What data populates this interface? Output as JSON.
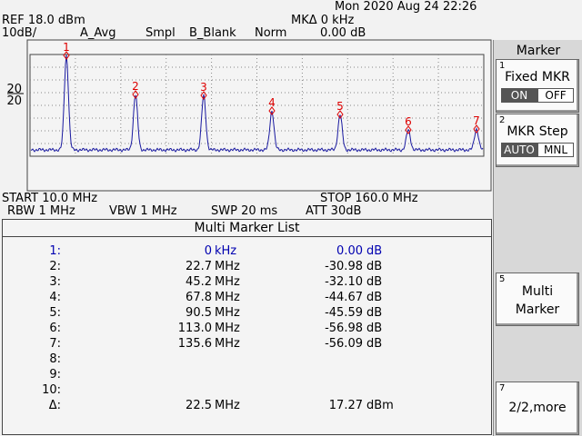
{
  "header": {
    "datetime": "Mon 2020 Aug 24 22:26",
    "ref": "REF 18.0 dBm",
    "mkr_delta": "MKΔ 0 kHz",
    "scale": "10dB/",
    "detector": "A_Avg",
    "sampling": "Smpl",
    "blank": "B_Blank",
    "norm": "Norm",
    "mkr_value": "0.00 dB"
  },
  "graticule": {
    "left_labels": [
      "20",
      "20"
    ],
    "marker_labels": [
      "1",
      "2",
      "3",
      "4",
      "5",
      "6",
      "7"
    ]
  },
  "footer": {
    "start": "START 10.0 MHz",
    "stop": "STOP 160.0 MHz",
    "rbw": "RBW 1 MHz",
    "vbw": "VBW 1 MHz",
    "sweep": "SWP 20 ms",
    "att": "ATT 30dB"
  },
  "marker_list": {
    "title": "Multi Marker List",
    "rows": [
      {
        "index": "1:",
        "value": "0",
        "unit": "kHz",
        "level": "0.00",
        "level_unit": "dB"
      },
      {
        "index": "2:",
        "value": "22.7",
        "unit": "MHz",
        "level": "-30.98",
        "level_unit": "dB"
      },
      {
        "index": "3:",
        "value": "45.2",
        "unit": "MHz",
        "level": "-32.10",
        "level_unit": "dB"
      },
      {
        "index": "4:",
        "value": "67.8",
        "unit": "MHz",
        "level": "-44.67",
        "level_unit": "dB"
      },
      {
        "index": "5:",
        "value": "90.5",
        "unit": "MHz",
        "level": "-45.59",
        "level_unit": "dB"
      },
      {
        "index": "6:",
        "value": "113.0",
        "unit": "MHz",
        "level": "-56.98",
        "level_unit": "dB"
      },
      {
        "index": "7:",
        "value": "135.6",
        "unit": "MHz",
        "level": "-56.09",
        "level_unit": "dB"
      },
      {
        "index": "8:"
      },
      {
        "index": "9:"
      },
      {
        "index": "10:"
      },
      {
        "index": "Δ:",
        "value": "22.5",
        "unit": "MHz",
        "level": "17.27",
        "level_unit": "dBm"
      }
    ]
  },
  "softkeys": {
    "title": "Marker",
    "keys": [
      {
        "number": "1",
        "label": "Fixed MKR",
        "options": [
          "ON",
          "OFF"
        ]
      },
      {
        "number": "2",
        "label": "MKR Step",
        "options": [
          "AUTO",
          "MNL"
        ]
      },
      {
        "number": "5",
        "label": "Multi Marker"
      },
      {
        "number": "7",
        "label": "2/2,more"
      }
    ]
  }
}
